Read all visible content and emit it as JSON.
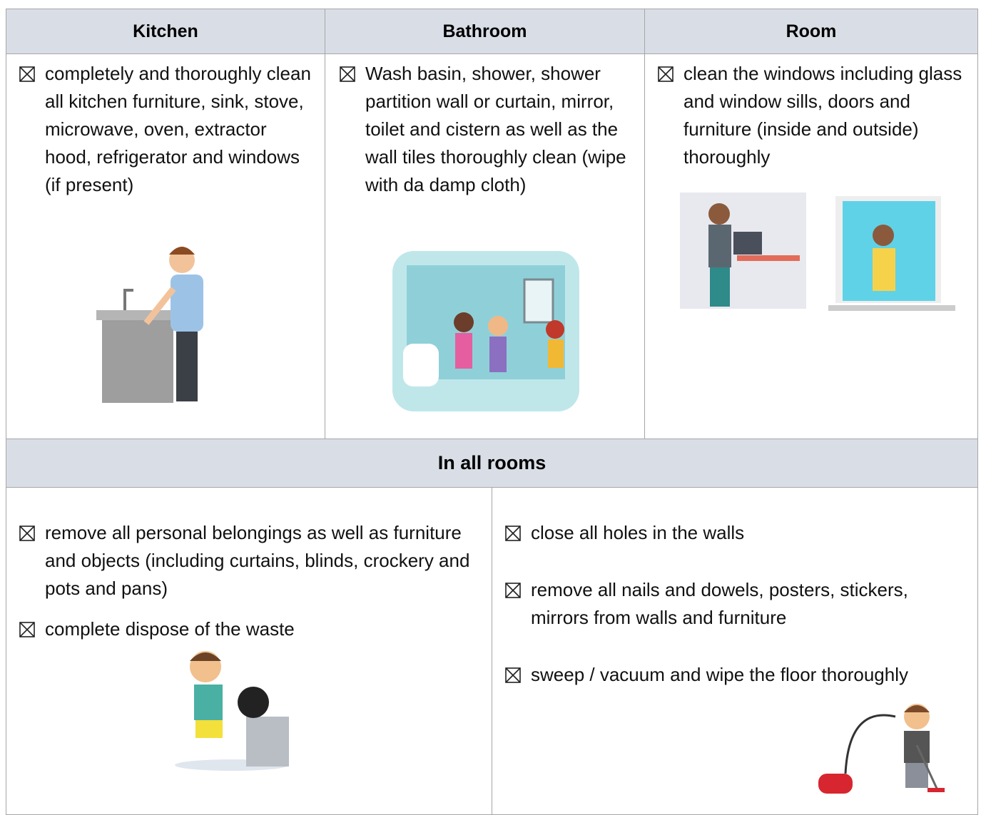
{
  "table": {
    "headers": [
      "Kitchen",
      "Bathroom",
      "Room"
    ],
    "columns": [
      [
        "completely and thoroughly clean all kitchen furniture, sink, stove, microwave, oven, extractor hood, refrigerator and windows (if present)"
      ],
      [
        "Wash basin, shower, shower partition wall or curtain, mirror, toilet and cistern as well as the wall tiles thoroughly clean (wipe with da damp cloth)"
      ],
      [
        "clean the windows including glass and window sills, doors and furniture (inside and outside) thoroughly"
      ]
    ],
    "section_title": "In all rooms",
    "section_left": [
      "remove all personal belongings as well as furniture and objects (including curtains, blinds, crockery and pots and pans)",
      "complete dispose of the waste"
    ],
    "section_right": [
      "close all holes in the walls",
      "remove all nails and dowels, posters, stickers, mirrors from walls and furniture",
      "sweep / vacuum and wipe the floor thoroughly"
    ]
  }
}
